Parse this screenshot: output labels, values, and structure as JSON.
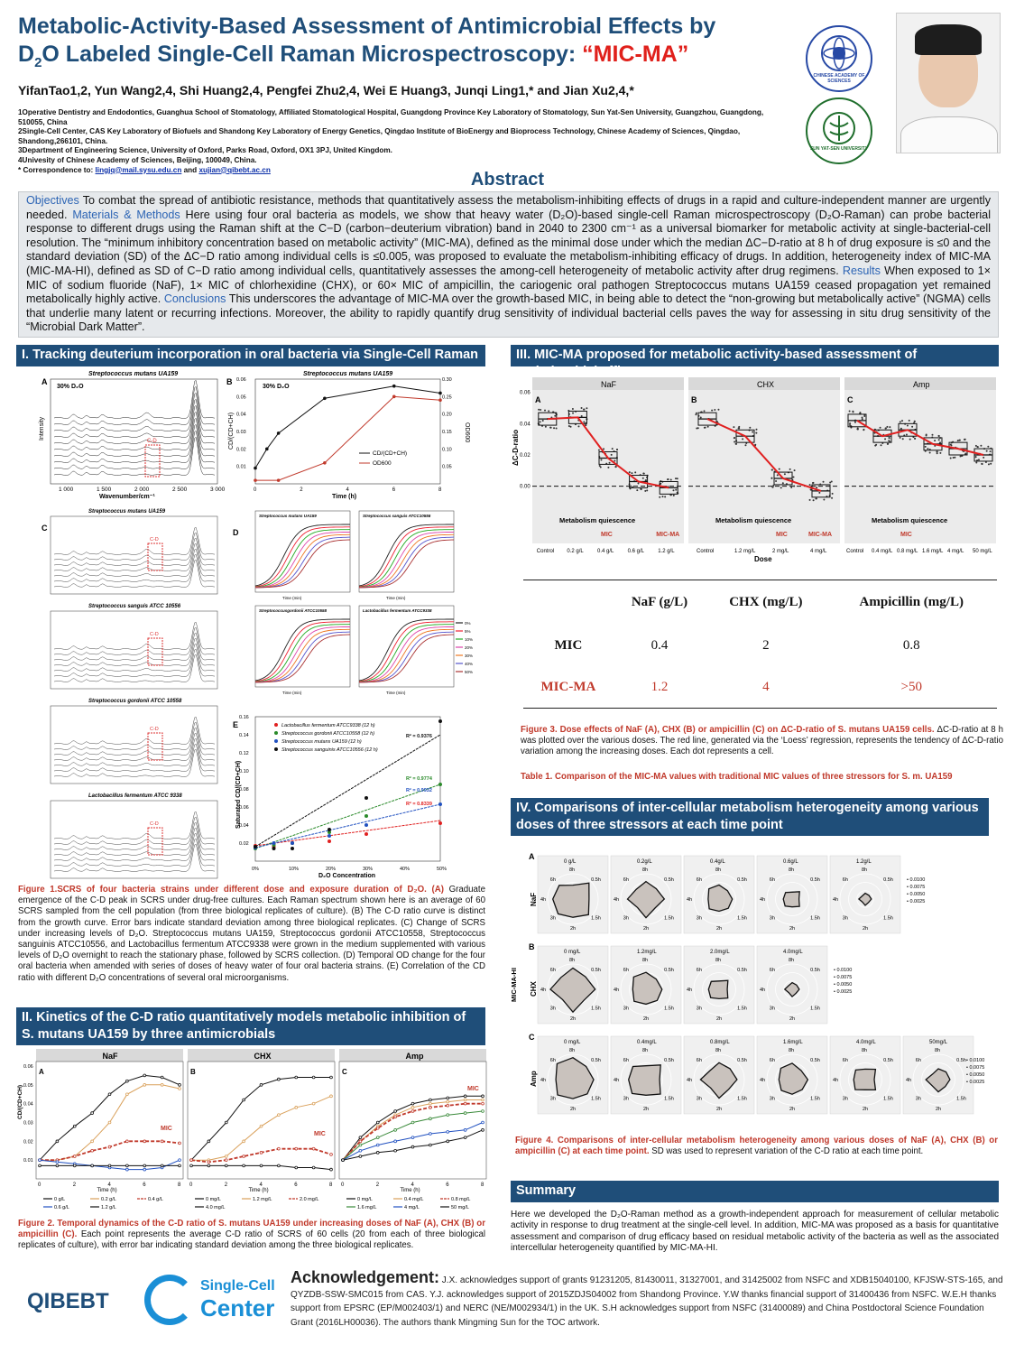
{
  "header": {
    "title_1": "Metabolic-Activity-Based Assessment of Antimicrobial Effects by",
    "title_2a": "D",
    "title_2sub": "2",
    "title_2b": "O Labeled Single-Cell Raman Microspectroscopy: ",
    "title_2c": "“MIC-MA”",
    "authors": "YifanTao1,2, Yun Wang2,4, Shi Huang2,4, Pengfei Zhu2,4, Wei E Huang3, Junqi Ling1,* and Jian Xu2,4,*",
    "affiliations": [
      "1Operative Dentistry and Endodontics, Guanghua School of Stomatology, Affiliated Stomatological Hospital, Guangdong Province Key Laboratory of Stomatology, Sun Yat-Sen University, Guangzhou, Guangdong, 510055, China",
      "2Single-Cell Center, CAS Key Laboratory of Biofuels and Shandong Key Laboratory of Energy Genetics, Qingdao Institute of BioEnergy and Bioprocess Technology, Chinese Academy of Sciences, Qingdao, Shandong,266101, China.",
      "3Department of Engineering Science, University of Oxford, Parks Road, Oxford, OX1 3PJ, United Kingdom.",
      "4Univesity of Chinese Academy of Sciences, Beijing, 100049, China."
    ],
    "correspondence_label": "* Correspondence to: ",
    "email1": "lingjq@mail.sysu.edu.cn",
    "and": " and ",
    "email2": "xujian@qibebt.ac.cn",
    "logo_cas": "CHINESE ACADEMY OF SCIENCES",
    "logo_sysu": "SUN YAT-SEN UNIVERSITY"
  },
  "abstract": {
    "title": "Abstract",
    "objectives_label": "Objectives",
    "objectives": " To combat the spread of antibiotic resistance, methods that quantitatively assess the metabolism-inhibiting effects of drugs in a rapid and culture-independent manner are urgently needed. ",
    "methods_label": "Materials & Methods",
    "methods": " Here using four oral bacteria as models, we show that heavy water (D₂O)-based single-cell Raman microspectroscopy (D₂O-Raman) can probe bacterial response to different drugs using the Raman shift at the C−D (carbon−deuterium vibration) band in 2040 to 2300 cm⁻¹ as a universal biomarker for metabolic activity at single-bacterial-cell resolution. The “minimum inhibitory concentration based on metabolic activity” (MIC-MA), defined as the minimal dose under which the median ΔC−D-ratio at 8 h of drug exposure is ≤0 and the standard deviation (SD) of the ΔC−D ratio among individual cells is ≤0.005, was proposed to evaluate the metabolism-inhibiting efficacy of drugs. In addition, heterogeneity index of MIC-MA (MIC-MA-HI), defined as SD of C−D ratio among individual cells, quantitatively assesses the among-cell heterogeneity of metabolic activity after drug regimens. ",
    "results_label": "Results",
    "results": " When exposed to 1× MIC of sodium fluoride (NaF), 1× MIC of chlorhexidine (CHX), or 60× MIC of ampicillin, the cariogenic oral pathogen Streptococcus mutans UA159 ceased propagation yet remained metabolically highly active. ",
    "conclusions_label": "Conclusions",
    "conclusions": " This underscores the advantage of MIC-MA over the growth-based MIC, in being able to detect the “non-growing but metabolically active” (NGMA) cells that underlie many latent or recurring infections. Moreover, the ability to rapidly quantify drug sensitivity of individual bacterial cells paves the way for assessing in situ drug sensitivity of the “Microbial Dark Matter”."
  },
  "sections": {
    "s1": "I. Tracking deuterium incorporation in oral bacteria via Single-Cell Raman Spectra",
    "s2": "II. Kinetics of the C-D ratio quantitatively models metabolic inhibition of S. mutans UA159 by three antimicrobials",
    "s3": "III. MIC-MA proposed for metabolic activity-based assessment of antimicrobial efficacy",
    "s4": "IV. Comparisons of inter-cellular metabolism heterogeneity among various doses of three stressors at each time point",
    "s5": "Summary"
  },
  "fig1": {
    "a_title": "Streptococcus mutans UA159",
    "a_d2o": "30% D₂O",
    "a_xlabel": "Wavenumber/cm⁻¹",
    "a_ylabel": "Intensity",
    "a_ticks": [
      "1 000",
      "1 500",
      "2 000",
      "2 500",
      "3 000"
    ],
    "cd": "C-D",
    "b_title": "Streptococcus mutans UA159",
    "b_d2o": "30% D₂O",
    "b_xlabel": "Time (h)",
    "b_ylabel": "CD/(CD+CH)",
    "b_ylabel2": "OD600",
    "b_legend": [
      "CD/(CD+CH)",
      "OD600"
    ],
    "c_titles": [
      "Streptococcus mutans UA159",
      "Streptococcus sanguis ATCC 10556",
      "Streptococcus gordonii ATCC 10558",
      "Lactobacillus fermentum ATCC 9338"
    ],
    "d_titles": [
      "Streptococcus mutans UA159",
      "Streptococcus sanguis ATCC10556",
      "Streptococcusgordonii ATCC10558",
      "Lactobacillus fermentum ATCC9338"
    ],
    "d_legend": [
      "0%",
      "5%",
      "10%",
      "20%",
      "30%",
      "40%",
      "50%"
    ],
    "d_xlabel": "Time (min)",
    "e_legend": [
      "Lactobacillus fermentum ATCC9338 (12 h)",
      "Streptococcus gordonii ATCC10558 (12 h)",
      "Streptococcus mutans UA159 (12 h)",
      "Streptococcus sanguinis ATCC10556 (12 h)"
    ],
    "e_r2": [
      "R² = 0.9376",
      "R² = 0.9774",
      "R² = 0.9932",
      "R² = 0.8339"
    ],
    "e_xlabel": "D₂O Concentration",
    "e_ylabel": "Saturated CD/(CD+CH)",
    "panel_labels": [
      "A",
      "B",
      "C",
      "D",
      "E"
    ]
  },
  "fig1_caption": {
    "lead": "Figure 1.SCRS of four bacteria strains under different dose and exposure duration of D₂O. (A)",
    "body": " Graduate emergence of the C-D peak in SCRS under drug-free cultures. Each Raman spectrum shown here is an average of 60 SCRS sampled from the cell population (from three biological replicates of culture). (B) The C-D ratio curve is distinct from the growth curve. Error bars indicate standard deviation among three biological replicates. (C) Change of SCRS under increasing levels of D₂O. Streptococcus mutans UA159, Streptococcus gordonii ATCC10558, Streptococcus sanguinis ATCC10556, and Lactobacillus fermentum ATCC9338 were grown in the medium supplemented with various levels of D₂O overnight to reach the stationary phase, followed by SCRS collection. (D) Temporal OD change for the four oral bacteria when amended with series of doses of heavy water of four oral bacteria strains. (E) Correlation of the CD ratio with different D₂O concentrations of several oral microorganisms."
  },
  "fig2": {
    "panels": [
      "NaF",
      "CHX",
      "Amp"
    ],
    "letters": [
      "A",
      "B",
      "C"
    ],
    "xlabel": "Time (h)",
    "ylabel": "CD/(CD+CH)",
    "mic": "MIC",
    "legend_naf": [
      "0 g/L",
      "0.2 g/L",
      "0.4 g/L",
      "0.6 g/L",
      "1.2 g/L"
    ],
    "legend_chx": [
      "0 mg/L",
      "1.2 mg/L",
      "2.0 mg/L",
      "4.0 mg/L"
    ],
    "legend_amp": [
      "0 mg/L",
      "0.4 mg/L",
      "0.8 mg/L",
      "1.6 mg/L",
      "4 mg/L",
      "50 mg/L"
    ]
  },
  "fig2_caption": {
    "lead": "Figure 2. Temporal dynamics of the C-D ratio of S. mutans UA159 under increasing doses of NaF (A), CHX (B) or ampicillin (C).",
    "body": " Each point represents the average C-D ratio of SCRS of 60 cells (20 from each of three biological replicates of culture), with error bar indicating standard deviation among the three biological replicates."
  },
  "fig3": {
    "panels": [
      "NaF",
      "CHX",
      "Amp"
    ],
    "letters": [
      "A",
      "B",
      "C"
    ],
    "ylabel": "ΔC-D-ratio",
    "xlabel": "Dose",
    "quiescence": "Metabolism quiescence",
    "mic": "MIC",
    "micma": "MIC-MA",
    "doses_naf": [
      "Control",
      "0.2 g/L",
      "0.4 g/L",
      "0.6 g/L",
      "1.2 g/L"
    ],
    "doses_chx": [
      "Control",
      "1.2 mg/L",
      "2 mg/L",
      "4 mg/L"
    ],
    "doses_amp": [
      "Control",
      "0.4 mg/L",
      "0.8 mg/L",
      "1.6 mg/L",
      "4 mg/L",
      "50 mg/L"
    ],
    "yticks": [
      "0.06",
      "0.04",
      "0.02",
      "0.00"
    ]
  },
  "table1": {
    "headers": [
      "",
      "NaF (g/L)",
      "CHX (mg/L)",
      "Ampicillin (mg/L)"
    ],
    "rows": [
      [
        "MIC",
        "0.4",
        "2",
        "0.8"
      ],
      [
        "MIC-MA",
        "1.2",
        "4",
        ">50"
      ]
    ]
  },
  "fig3_caption": {
    "lead": "Figure 3. Dose effects of NaF (A), CHX (B) or ampicillin (C) on ΔC-D-ratio of S. mutans UA159 cells.",
    "body": " ΔC-D-ratio at 8 h was plotted over the various doses. The red line, generated via the ‘Loess’ regression, represents the tendency of ΔC-D-ratio variation among the increasing doses. Each dot represents a cell."
  },
  "table1_caption": "Table 1. Comparison of the MIC-MA values with traditional MIC values of three stressors for S. m. UA159",
  "fig4": {
    "rows": [
      {
        "letter": "A",
        "label": "NaF",
        "doses": [
          "0 g/L",
          "0.2g/L",
          "0.4g/L",
          "0.6g/L",
          "1.2g/L"
        ]
      },
      {
        "letter": "B",
        "label": "CHX",
        "doses": [
          "0 mg/L",
          "1.2mg/L",
          "2.0mg/L",
          "4.0mg/L"
        ]
      },
      {
        "letter": "C",
        "label": "Amp",
        "doses": [
          "0 mg/L",
          "0.4mg/L",
          "0.8mg/L",
          "1.6mg/L",
          "4.0mg/L",
          "50mg/L"
        ]
      }
    ],
    "ylabel": "MIC-MA-HI",
    "times": [
      "8h",
      "0h",
      "0.5h",
      "1.5h",
      "2h",
      "3h",
      "4h",
      "6h"
    ],
    "scale": [
      "0.0100",
      "0.0075",
      "0.0050",
      "0.0025"
    ]
  },
  "fig4_caption": {
    "lead": "Figure 4. Comparisons of inter-cellular metabolism heterogeneity among various doses of NaF (A), CHX (B) or ampicillin (C) at each time point.",
    "body": " SD was used to represent variation of the C-D ratio at each time point."
  },
  "summary": "Here we developed the D₂O-Raman method as a growth-independent approach for measurement of cellular metabolic activity in response to drug treatment at the single-cell level. In addition, MIC-MA was proposed as a basis for quantitative assessment and comparison of drug efficacy based on residual metabolic activity of the bacteria as well as the associated intercellular heterogeneity quantified by MIC-MA-HI.",
  "ack": {
    "heading": "Acknowledgement:",
    "text": " J.X. acknowledges support of grants 91231205, 81430011, 31327001, and 31425002 from NSFC and XDB15040100, KFJSW-STS-165, and QYZDB-SSW-SMC015 from CAS. Y.J. acknowledges support of 2015ZDJS04002 from Shandong Province. Y.W thanks financial support of 31400436 from NSFC. W.E.H thanks support from EPSRC (EP/M002403/1) and NERC (NE/M002934/1) in the UK. S.H acknowledges support from NSFC (31400089) and China Postdoctoral Science Foundation Grant (2016LH00036). The authors thank Mingming Sun for the TOC artwork."
  },
  "logos": {
    "qibebt": "QIBEBT",
    "scc1": "Single-Cell",
    "scc2": "Center"
  },
  "colors": {
    "navy": "#1f4e79",
    "red": "#e0201b",
    "keyword": "#2c64b4",
    "section_bg": "#1f4e79"
  }
}
